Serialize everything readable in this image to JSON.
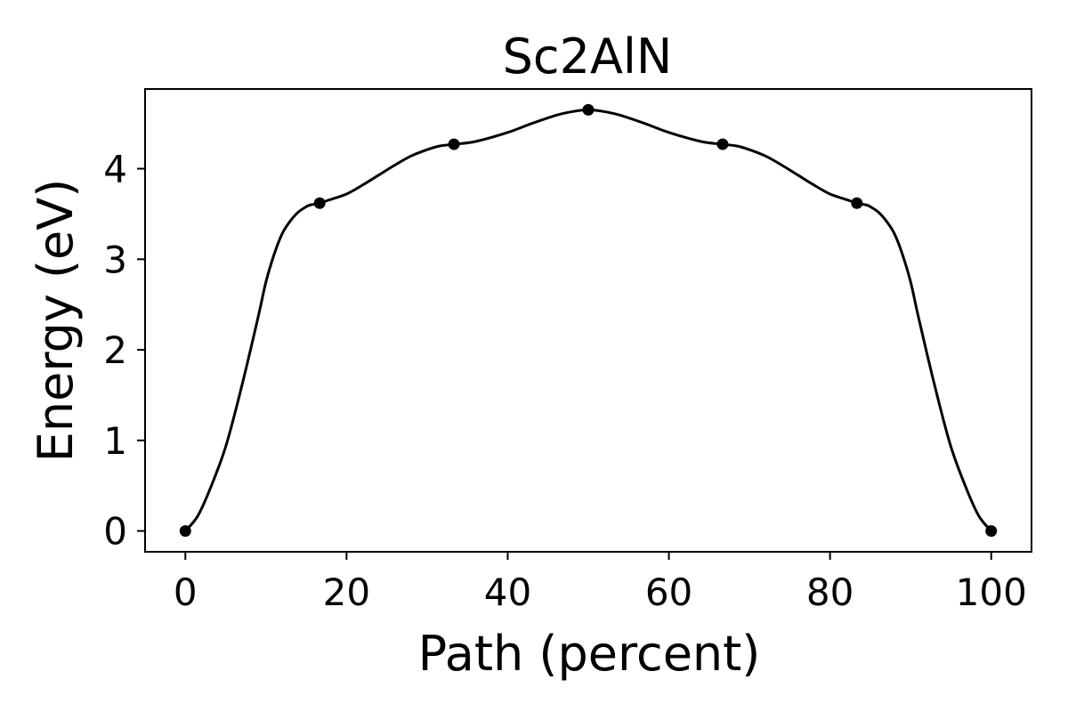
{
  "chart_data": {
    "type": "line",
    "title": "Sc2AlN",
    "xlabel": "Path (percent)",
    "ylabel": "Energy (eV)",
    "xlim": [
      -5,
      105
    ],
    "ylim": [
      -0.23,
      4.88
    ],
    "grid": false,
    "x_ticks": [
      0,
      20,
      40,
      60,
      80,
      100
    ],
    "y_ticks": [
      0,
      1,
      2,
      3,
      4
    ],
    "series": [
      {
        "points_x": [
          0,
          16.67,
          33.33,
          50,
          66.67,
          83.33,
          100
        ],
        "points_y": [
          0,
          3.62,
          4.27,
          4.65,
          4.27,
          3.62,
          0
        ],
        "curve_x": [
          0,
          1.5,
          3,
          5,
          7,
          9,
          10,
          11,
          12,
          13,
          14,
          15,
          15.5,
          16.67,
          18,
          20,
          22,
          24,
          26,
          28,
          30,
          31.5,
          33.33,
          36,
          40,
          43,
          46,
          48,
          50,
          52,
          54,
          57,
          60,
          64,
          66.67,
          68.5,
          70,
          72,
          74,
          76,
          78,
          80,
          82,
          83.33,
          84.5,
          85,
          86,
          87,
          88,
          89,
          90,
          91,
          93,
          95,
          97,
          98.5,
          100
        ],
        "curve_y": [
          0,
          0.16,
          0.45,
          0.93,
          1.6,
          2.35,
          2.75,
          3.05,
          3.28,
          3.42,
          3.52,
          3.58,
          3.6,
          3.62,
          3.66,
          3.72,
          3.82,
          3.93,
          4.04,
          4.14,
          4.21,
          4.25,
          4.27,
          4.3,
          4.4,
          4.5,
          4.59,
          4.63,
          4.65,
          4.63,
          4.59,
          4.5,
          4.4,
          4.3,
          4.27,
          4.25,
          4.21,
          4.14,
          4.04,
          3.93,
          3.82,
          3.72,
          3.66,
          3.62,
          3.6,
          3.58,
          3.52,
          3.42,
          3.28,
          3.05,
          2.75,
          2.35,
          1.6,
          0.93,
          0.45,
          0.16,
          0
        ]
      }
    ]
  }
}
